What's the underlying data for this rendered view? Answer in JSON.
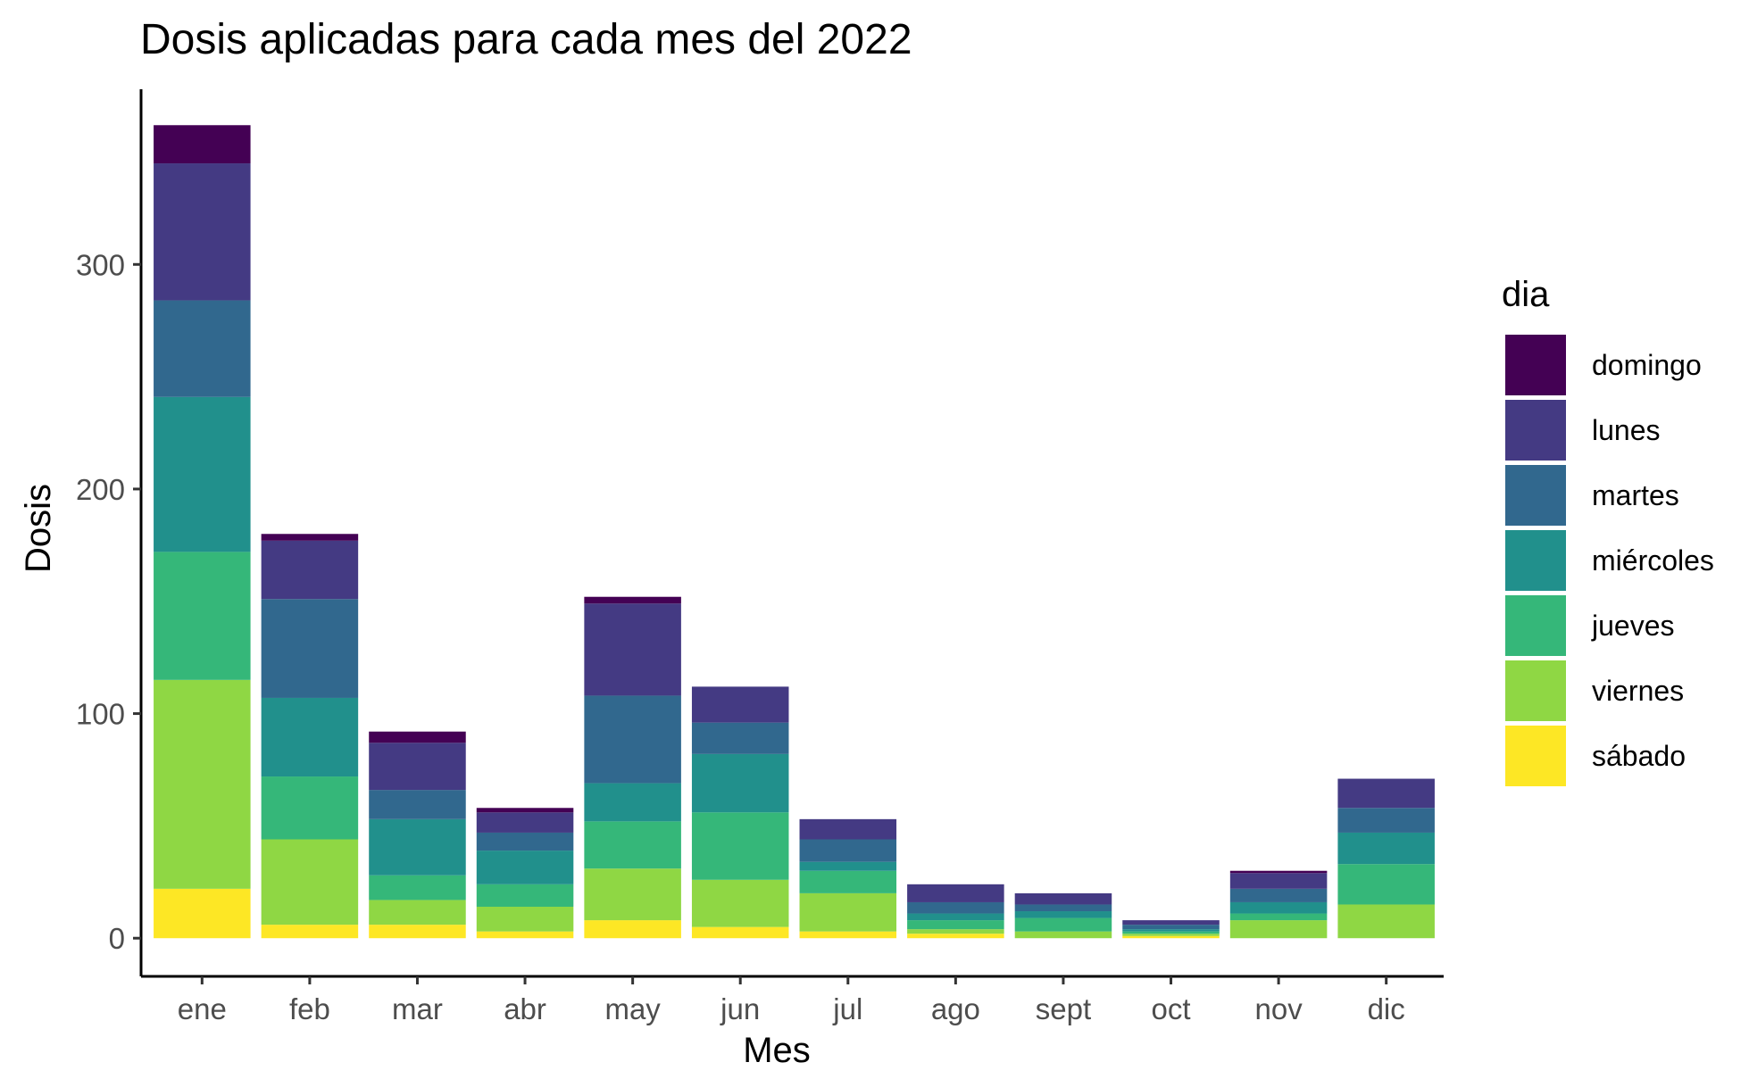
{
  "chart_data": {
    "type": "bar",
    "stacked": true,
    "title": "Dosis aplicadas para cada mes del 2022",
    "xlabel": "Mes",
    "ylabel": "Dosis",
    "ylim": [
      -17,
      378
    ],
    "yticks": [
      0,
      100,
      200,
      300
    ],
    "categories": [
      "ene",
      "feb",
      "mar",
      "abr",
      "may",
      "jun",
      "jul",
      "ago",
      "sept",
      "oct",
      "nov",
      "dic"
    ],
    "legend": {
      "title": "dia",
      "position": "right"
    },
    "grid": false,
    "series": [
      {
        "name": "sábado",
        "color": "#FDE725",
        "values": [
          22,
          6,
          6,
          3,
          8,
          5,
          3,
          2,
          0,
          1,
          0,
          0
        ]
      },
      {
        "name": "viernes",
        "color": "#8FD744",
        "values": [
          93,
          38,
          11,
          11,
          23,
          21,
          17,
          2,
          3,
          1,
          8,
          15
        ]
      },
      {
        "name": "jueves",
        "color": "#35B779",
        "values": [
          57,
          28,
          11,
          10,
          21,
          30,
          10,
          4,
          6,
          1,
          3,
          18
        ]
      },
      {
        "name": "miércoles",
        "color": "#21908C",
        "values": [
          69,
          35,
          25,
          15,
          17,
          26,
          4,
          3,
          3,
          1,
          5,
          14
        ]
      },
      {
        "name": "martes",
        "color": "#31688E",
        "values": [
          43,
          44,
          13,
          8,
          39,
          14,
          10,
          5,
          3,
          2,
          6,
          11
        ]
      },
      {
        "name": "lunes",
        "color": "#443A83",
        "values": [
          61,
          26,
          21,
          9,
          41,
          16,
          9,
          8,
          5,
          2,
          7,
          13
        ]
      },
      {
        "name": "domingo",
        "color": "#440154",
        "values": [
          17,
          3,
          5,
          2,
          3,
          0,
          0,
          0,
          0,
          0,
          1,
          0
        ]
      }
    ]
  }
}
